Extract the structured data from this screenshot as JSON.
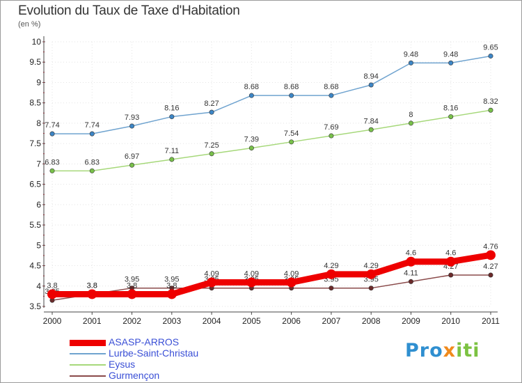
{
  "header": {
    "title": "Evolution du Taux de Taxe d'Habitation",
    "unit": "(en %)"
  },
  "brand": {
    "part1": "Pro",
    "part2": "x",
    "part3": "iti"
  },
  "chart_data": {
    "type": "line",
    "title": "Evolution du Taux de Taxe d'Habitation",
    "ylabel": "(en %)",
    "xlabel": "",
    "ylim": [
      3.5,
      10
    ],
    "yticks": [
      3.5,
      4,
      4.5,
      5,
      5.5,
      6,
      6.5,
      7,
      7.5,
      8,
      8.5,
      9,
      9.5,
      10
    ],
    "ytick_labels": [
      "3.5",
      "4",
      "4.5",
      "5",
      "5.5",
      "6",
      "6.5",
      "7",
      "7.5",
      "8",
      "8.5",
      "9",
      "9.5",
      "10"
    ],
    "categories": [
      "2000",
      "2001",
      "2002",
      "2003",
      "2004",
      "2005",
      "2006",
      "2007",
      "2008",
      "2009",
      "2010",
      "2011"
    ],
    "grid": true,
    "legend_position": "bottom-left",
    "series": [
      {
        "name": "Lurbe-Saint-Christau",
        "color": "#6fa3cf",
        "marker": "#3d86c6",
        "values": [
          7.74,
          7.74,
          7.93,
          8.16,
          8.27,
          8.68,
          8.68,
          8.68,
          8.94,
          9.48,
          9.48,
          9.65
        ],
        "labels": [
          "7.74",
          "7.74",
          "7.93",
          "8.16",
          "8.27",
          "8.68",
          "8.68",
          "8.68",
          "8.94",
          "9.48",
          "9.48",
          "9.65"
        ]
      },
      {
        "name": "Eysus",
        "color": "#a6d87a",
        "marker": "#78c04a",
        "values": [
          6.83,
          6.83,
          6.97,
          7.11,
          7.25,
          7.39,
          7.54,
          7.69,
          7.84,
          8,
          8.16,
          8.32
        ],
        "labels": [
          "6.83",
          "6.83",
          "6.97",
          "7.11",
          "7.25",
          "7.39",
          "7.54",
          "7.69",
          "7.84",
          "8",
          "8.16",
          "8.32"
        ]
      },
      {
        "name": "Gurmençon",
        "color": "#8a4a4a",
        "marker": "#6b2a2a",
        "values": [
          3.65,
          3.8,
          3.95,
          3.95,
          3.95,
          3.95,
          3.95,
          3.95,
          3.95,
          4.11,
          4.27,
          4.27
        ],
        "labels": [
          "3.65",
          "3.8",
          "3.95",
          "3.95",
          "3.95",
          "3.95",
          "3.95",
          "3.95",
          "3.95",
          "4.11",
          "4.27",
          "4.27"
        ]
      },
      {
        "name": "ASASP-ARROS",
        "color": "#ee0000",
        "marker": "#ee0000",
        "values": [
          3.8,
          3.8,
          3.8,
          3.8,
          4.09,
          4.09,
          4.09,
          4.29,
          4.29,
          4.6,
          4.6,
          4.76
        ],
        "labels": [
          "3.8",
          "3.8",
          "3.8",
          "3.8",
          "4.09",
          "4.09",
          "4.09",
          "4.29",
          "4.29",
          "4.6",
          "4.6",
          "4.76"
        ]
      }
    ],
    "legend": [
      {
        "name": "ASASP-ARROS",
        "color": "#ee0000"
      },
      {
        "name": "Lurbe-Saint-Christau",
        "color": "#6fa3cf"
      },
      {
        "name": "Eysus",
        "color": "#a6d87a"
      },
      {
        "name": "Gurmençon",
        "color": "#8a4a4a"
      }
    ]
  }
}
